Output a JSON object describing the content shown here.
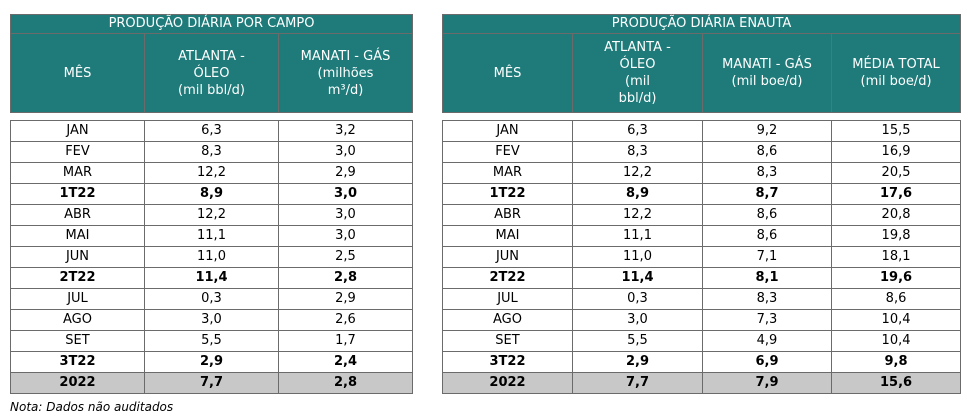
{
  "field_table": {
    "title": "PRODUÇÃO DIÁRIA POR CAMPO",
    "headers": [
      "MÊS",
      "ATLANTA -\nÓLEO\n(mil bbl/d)",
      "MANATI - GÁS\n(milhões\nm³/d)"
    ],
    "rows": [
      [
        "JAN",
        "6,3",
        "3,2"
      ],
      [
        "FEV",
        "8,3",
        "3,0"
      ],
      [
        "MAR",
        "12,2",
        "2,9"
      ],
      [
        "1T22",
        "8,9",
        "3,0"
      ],
      [
        "ABR",
        "12,2",
        "3,0"
      ],
      [
        "MAI",
        "11,1",
        "3,0"
      ],
      [
        "JUN",
        "11,0",
        "2,5"
      ],
      [
        "2T22",
        "11,4",
        "2,8"
      ],
      [
        "JUL",
        "0,3",
        "2,9"
      ],
      [
        "AGO",
        "3,0",
        "2,6"
      ],
      [
        "SET",
        "5,5",
        "1,7"
      ],
      [
        "3T22",
        "2,9",
        "2,4"
      ],
      [
        "2022",
        "7,7",
        "2,8"
      ]
    ]
  },
  "enauta_table": {
    "title": "PRODUÇÃO DIÁRIA ENAUTA",
    "headers": [
      "MÊS",
      "ATLANTA -\nÓLEO\n(mil\nbbl/d)",
      "MANATI - GÁS\n(mil boe/d)",
      "MÉDIA TOTAL\n(mil boe/d)"
    ],
    "rows": [
      [
        "JAN",
        "6,3",
        "9,2",
        "15,5"
      ],
      [
        "FEV",
        "8,3",
        "8,6",
        "16,9"
      ],
      [
        "MAR",
        "12,2",
        "8,3",
        "20,5"
      ],
      [
        "1T22",
        "8,9",
        "8,7",
        "17,6"
      ],
      [
        "ABR",
        "12,2",
        "8,6",
        "20,8"
      ],
      [
        "MAI",
        "11,1",
        "8,6",
        "19,8"
      ],
      [
        "JUN",
        "11,0",
        "7,1",
        "18,1"
      ],
      [
        "2T22",
        "11,4",
        "8,1",
        "19,6"
      ],
      [
        "JUL",
        "0,3",
        "8,3",
        "8,6"
      ],
      [
        "AGO",
        "3,0",
        "7,3",
        "10,4"
      ],
      [
        "SET",
        "5,5",
        "4,9",
        "10,4"
      ],
      [
        "3T22",
        "2,9",
        "6,9",
        "9,8"
      ],
      [
        "2022",
        "7,7",
        "7,9",
        "15,6"
      ]
    ]
  },
  "note": "Nota: Dados não auditados"
}
